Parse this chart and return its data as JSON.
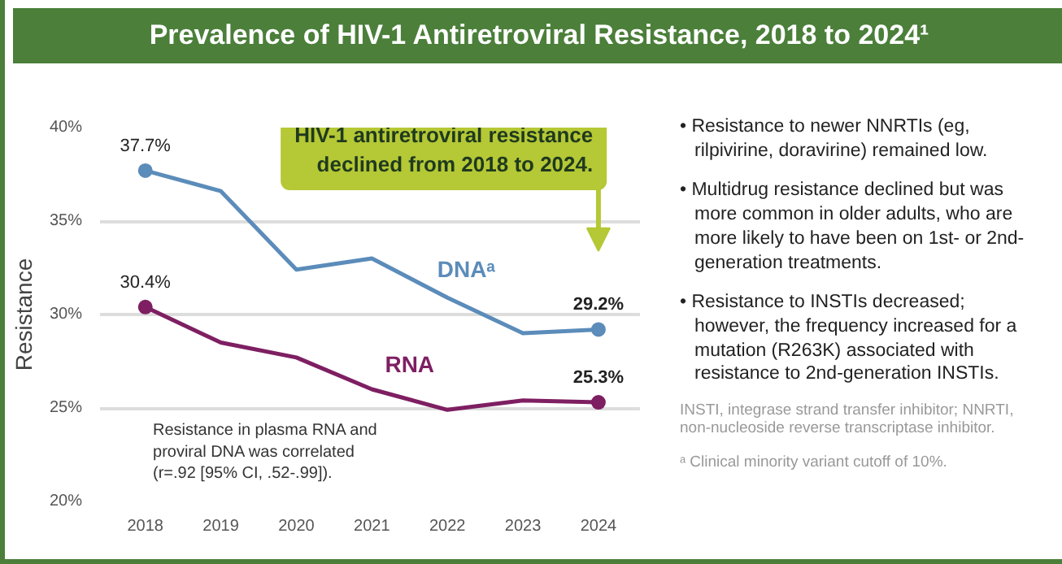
{
  "chart_data": {
    "type": "line",
    "title": "Prevalence of HIV-1 Antiretroviral Resistance, 2018 to 2024¹",
    "ylabel": "Resistance",
    "categories": [
      "2018",
      "2019",
      "2020",
      "2021",
      "2022",
      "2023",
      "2024"
    ],
    "series": [
      {
        "name": "DNAᵃ",
        "color": "#5b8cba",
        "values": [
          37.7,
          36.6,
          32.4,
          33.0,
          30.9,
          29.0,
          29.2
        ],
        "value_labels": [
          "37.7%",
          null,
          null,
          null,
          null,
          null,
          "29.2%"
        ]
      },
      {
        "name": "RNA",
        "color": "#7e1f62",
        "values": [
          30.4,
          28.5,
          27.7,
          26.0,
          24.9,
          25.4,
          25.3
        ],
        "value_labels": [
          "30.4%",
          null,
          null,
          null,
          null,
          null,
          "25.3%"
        ]
      }
    ],
    "ylim": [
      20,
      40
    ],
    "yticks": [
      {
        "value": 20,
        "label": "20%"
      },
      {
        "value": 25,
        "label": "25%"
      },
      {
        "value": 30,
        "label": "30%"
      },
      {
        "value": 35,
        "label": "35%"
      },
      {
        "value": 40,
        "label": "40%"
      }
    ],
    "grid": "y",
    "line_style": "solid",
    "legend": false,
    "annotations": [
      "HIV-1 antiretroviral resistance\ndeclined from 2018 to 2024.",
      "Resistance in plasma RNA and\nproviral DNA was correlated\n(r=.92 [95% CI, .52-.99]).",
      "• Resistance to newer NNRTIs (eg, rilpivirine, doravirine) remained low.",
      "• Multidrug resistance declined but was more common in older adults, who are more likely to have been on 1st- or 2nd-generation treatments.",
      "• Resistance to INSTIs decreased; however, the frequency increased for a mutation (R263K) associated with resistance to 2nd-generation INSTIs.",
      "INSTI, integrase strand transfer inhibitor; NNRTI, non-nucleoside reverse transcriptase inhibitor.",
      "ᵃ Clinical minority variant cutoff of 10%."
    ]
  }
}
